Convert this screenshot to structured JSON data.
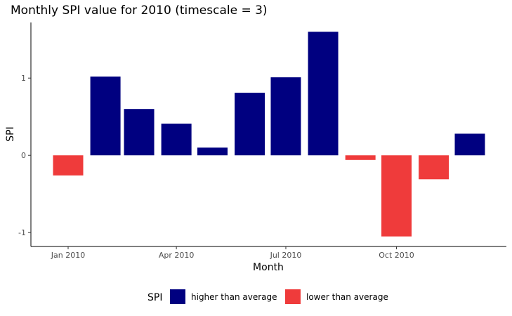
{
  "chart_data": {
    "type": "bar",
    "title": "Monthly SPI value for 2010 (timescale = 3)",
    "xlabel": "Month",
    "ylabel": "SPI",
    "categories": [
      "2010-01",
      "2010-02",
      "2010-03",
      "2010-04",
      "2010-05",
      "2010-06",
      "2010-07",
      "2010-08",
      "2010-09",
      "2010-10",
      "2010-11",
      "2010-12"
    ],
    "values": [
      -0.26,
      1.02,
      0.6,
      0.41,
      0.1,
      0.81,
      1.01,
      1.6,
      -0.06,
      -1.05,
      -0.31,
      0.28
    ],
    "x_ticks": [
      {
        "month": "2010-01",
        "label": "Jan 2010"
      },
      {
        "month": "2010-04",
        "label": "Apr 2010"
      },
      {
        "month": "2010-07",
        "label": "Jul 2010"
      },
      {
        "month": "2010-10",
        "label": "Oct 2010"
      }
    ],
    "y_ticks": [
      {
        "value": -1,
        "label": "-1"
      },
      {
        "value": 0,
        "label": "0"
      },
      {
        "value": 1,
        "label": "1"
      }
    ],
    "ylim": [
      -1.18,
      1.72
    ],
    "grid": false,
    "legend": {
      "title": "SPI",
      "placement": "bottom",
      "entries": [
        {
          "label": "higher than average",
          "color": "#000080"
        },
        {
          "label": "lower than average",
          "color": "#EF3B3B"
        }
      ]
    },
    "colors": {
      "positive": "#000080",
      "negative": "#EF3B3B"
    }
  }
}
